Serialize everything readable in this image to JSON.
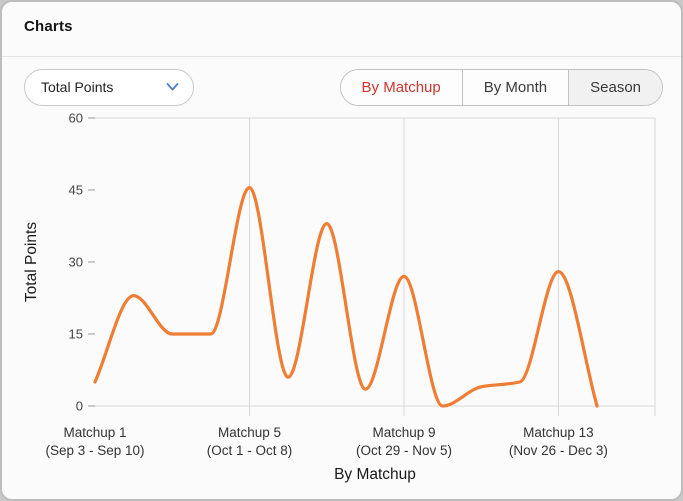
{
  "header": {
    "title": "Charts"
  },
  "controls": {
    "metric_dropdown": {
      "value": "Total Points"
    },
    "view_tabs": [
      {
        "label": "By Matchup",
        "selected": true
      },
      {
        "label": "By Month",
        "selected": false
      },
      {
        "label": "Season",
        "selected": false
      }
    ]
  },
  "colors": {
    "line": "#EF7D33",
    "selected_tab_text": "#D0342C",
    "grid": "#D8D8D8",
    "chevron": "#4A7FD0"
  },
  "chart_data": {
    "type": "line",
    "title": "",
    "xlabel": "By Matchup",
    "ylabel": "Total Points",
    "x": [
      1,
      2,
      3,
      4,
      5,
      6,
      7,
      8,
      9,
      10,
      11,
      12,
      13,
      14
    ],
    "values": [
      5,
      23,
      15,
      15,
      45.5,
      6,
      38,
      3.5,
      27,
      0,
      4,
      5,
      28,
      0
    ],
    "ylim": [
      0,
      60
    ],
    "yticks": [
      0,
      15,
      30,
      45,
      60
    ],
    "xlim": [
      1,
      15.5
    ],
    "xticks": [
      {
        "x": 1,
        "line1": "Matchup 1",
        "line2": "(Sep 3 - Sep 10)"
      },
      {
        "x": 5,
        "line1": "Matchup 5",
        "line2": "(Oct 1 - Oct 8)"
      },
      {
        "x": 9,
        "line1": "Matchup 9",
        "line2": "(Oct 29 - Nov 5)"
      },
      {
        "x": 13,
        "line1": "Matchup 13",
        "line2": "(Nov 26 - Dec 3)"
      }
    ],
    "gridlines_at": [
      5,
      9,
      13
    ],
    "grid": "vertical-only",
    "legend": "none"
  }
}
